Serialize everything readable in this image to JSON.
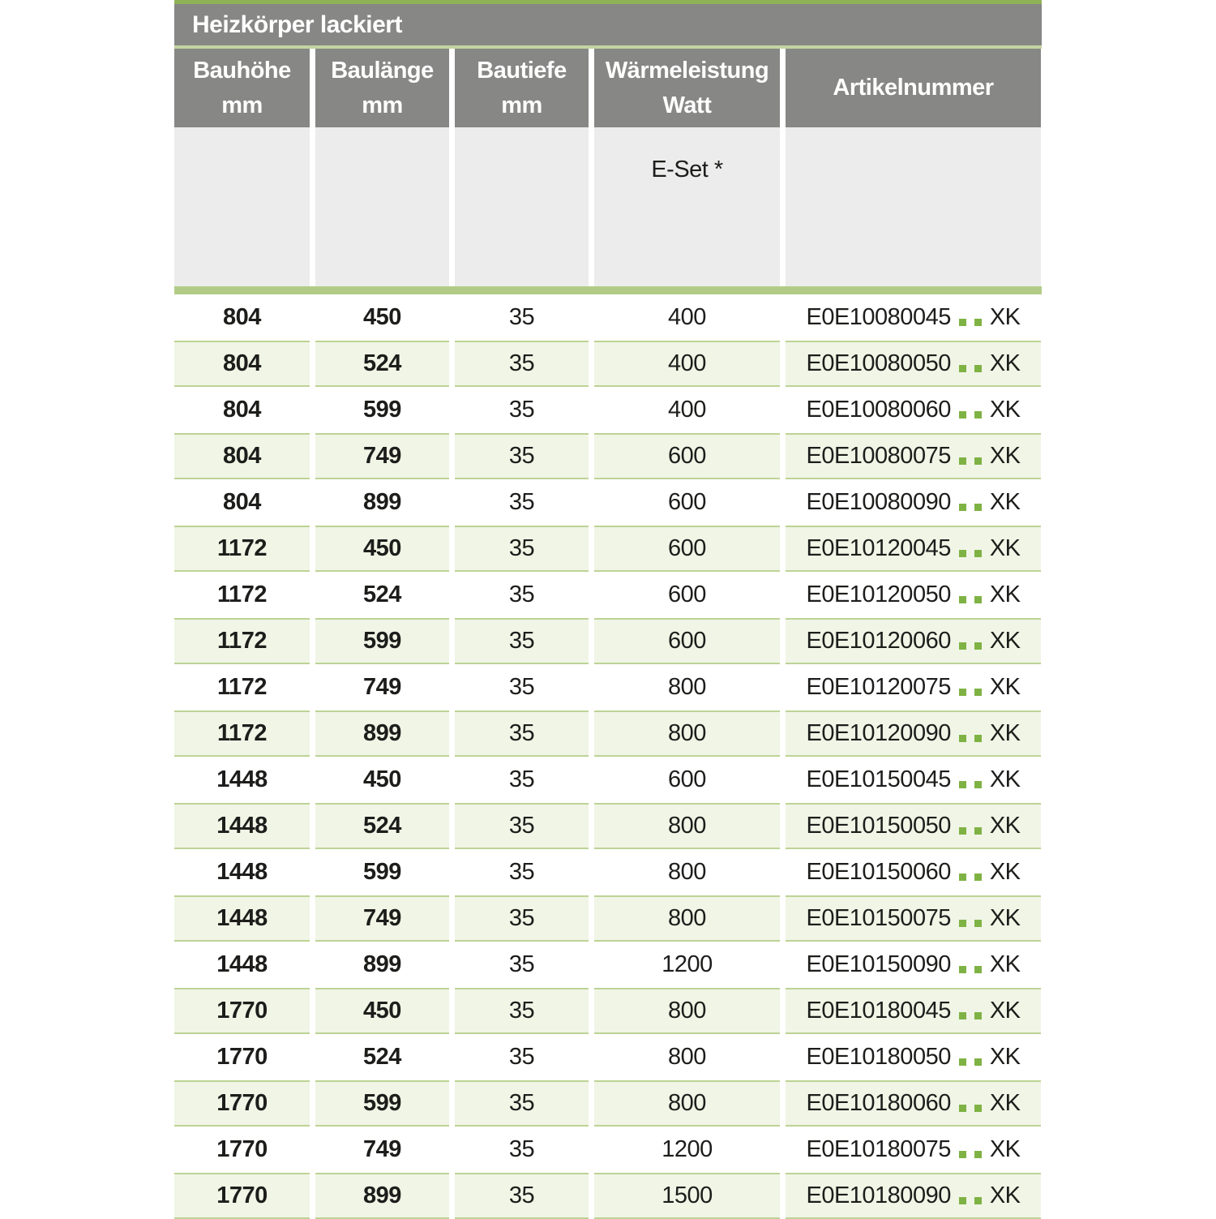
{
  "table": {
    "title": "Heizkörper lackiert",
    "columns": [
      {
        "line1": "Bauhöhe",
        "line2": "mm"
      },
      {
        "line1": "Baulänge",
        "line2": "mm"
      },
      {
        "line1": "Bautiefe",
        "line2": "mm"
      },
      {
        "line1": "Wärmeleistung",
        "line2": "Watt"
      },
      {
        "line1": "Artikelnummer",
        "line2": ""
      }
    ],
    "subheader": {
      "eset_label": "E-Set *"
    },
    "rows": [
      {
        "bauhoehe": "804",
        "baulaenge": "450",
        "bautiefe": "35",
        "watt": "400",
        "artikel_prefix": "E0E10080045",
        "artikel_dots": "..",
        "artikel_suffix": "XK"
      },
      {
        "bauhoehe": "804",
        "baulaenge": "524",
        "bautiefe": "35",
        "watt": "400",
        "artikel_prefix": "E0E10080050",
        "artikel_dots": "..",
        "artikel_suffix": "XK"
      },
      {
        "bauhoehe": "804",
        "baulaenge": "599",
        "bautiefe": "35",
        "watt": "400",
        "artikel_prefix": "E0E10080060",
        "artikel_dots": "..",
        "artikel_suffix": "XK"
      },
      {
        "bauhoehe": "804",
        "baulaenge": "749",
        "bautiefe": "35",
        "watt": "600",
        "artikel_prefix": "E0E10080075",
        "artikel_dots": "..",
        "artikel_suffix": "XK"
      },
      {
        "bauhoehe": "804",
        "baulaenge": "899",
        "bautiefe": "35",
        "watt": "600",
        "artikel_prefix": "E0E10080090",
        "artikel_dots": "..",
        "artikel_suffix": "XK"
      },
      {
        "bauhoehe": "1172",
        "baulaenge": "450",
        "bautiefe": "35",
        "watt": "600",
        "artikel_prefix": "E0E10120045",
        "artikel_dots": "..",
        "artikel_suffix": "XK"
      },
      {
        "bauhoehe": "1172",
        "baulaenge": "524",
        "bautiefe": "35",
        "watt": "600",
        "artikel_prefix": "E0E10120050",
        "artikel_dots": "..",
        "artikel_suffix": "XK"
      },
      {
        "bauhoehe": "1172",
        "baulaenge": "599",
        "bautiefe": "35",
        "watt": "600",
        "artikel_prefix": "E0E10120060",
        "artikel_dots": "..",
        "artikel_suffix": "XK"
      },
      {
        "bauhoehe": "1172",
        "baulaenge": "749",
        "bautiefe": "35",
        "watt": "800",
        "artikel_prefix": "E0E10120075",
        "artikel_dots": "..",
        "artikel_suffix": "XK"
      },
      {
        "bauhoehe": "1172",
        "baulaenge": "899",
        "bautiefe": "35",
        "watt": "800",
        "artikel_prefix": "E0E10120090",
        "artikel_dots": "..",
        "artikel_suffix": "XK"
      },
      {
        "bauhoehe": "1448",
        "baulaenge": "450",
        "bautiefe": "35",
        "watt": "600",
        "artikel_prefix": "E0E10150045",
        "artikel_dots": "..",
        "artikel_suffix": "XK"
      },
      {
        "bauhoehe": "1448",
        "baulaenge": "524",
        "bautiefe": "35",
        "watt": "800",
        "artikel_prefix": "E0E10150050",
        "artikel_dots": "..",
        "artikel_suffix": "XK"
      },
      {
        "bauhoehe": "1448",
        "baulaenge": "599",
        "bautiefe": "35",
        "watt": "800",
        "artikel_prefix": "E0E10150060",
        "artikel_dots": "..",
        "artikel_suffix": "XK"
      },
      {
        "bauhoehe": "1448",
        "baulaenge": "749",
        "bautiefe": "35",
        "watt": "800",
        "artikel_prefix": "E0E10150075",
        "artikel_dots": "..",
        "artikel_suffix": "XK"
      },
      {
        "bauhoehe": "1448",
        "baulaenge": "899",
        "bautiefe": "35",
        "watt": "1200",
        "artikel_prefix": "E0E10150090",
        "artikel_dots": "..",
        "artikel_suffix": "XK"
      },
      {
        "bauhoehe": "1770",
        "baulaenge": "450",
        "bautiefe": "35",
        "watt": "800",
        "artikel_prefix": "E0E10180045",
        "artikel_dots": "..",
        "artikel_suffix": "XK"
      },
      {
        "bauhoehe": "1770",
        "baulaenge": "524",
        "bautiefe": "35",
        "watt": "800",
        "artikel_prefix": "E0E10180050",
        "artikel_dots": "..",
        "artikel_suffix": "XK"
      },
      {
        "bauhoehe": "1770",
        "baulaenge": "599",
        "bautiefe": "35",
        "watt": "800",
        "artikel_prefix": "E0E10180060",
        "artikel_dots": "..",
        "artikel_suffix": "XK"
      },
      {
        "bauhoehe": "1770",
        "baulaenge": "749",
        "bautiefe": "35",
        "watt": "1200",
        "artikel_prefix": "E0E10180075",
        "artikel_dots": "..",
        "artikel_suffix": "XK"
      },
      {
        "bauhoehe": "1770",
        "baulaenge": "899",
        "bautiefe": "35",
        "watt": "1500",
        "artikel_prefix": "E0E10180090",
        "artikel_dots": "..",
        "artikel_suffix": "XK"
      }
    ]
  },
  "colors": {
    "header_gray": "#878786",
    "panel_gray": "#ececec",
    "accent_line_top": "#8fb257",
    "separator_light_green": "#c3d4a0",
    "separator_thick_green": "#b2cc87",
    "row_green_bg": "#f0f5e6",
    "row_border_green": "#bdd395",
    "dot_green": "#7fb244",
    "text_dark": "#1d1d1b",
    "header_text": "#ffffff"
  }
}
